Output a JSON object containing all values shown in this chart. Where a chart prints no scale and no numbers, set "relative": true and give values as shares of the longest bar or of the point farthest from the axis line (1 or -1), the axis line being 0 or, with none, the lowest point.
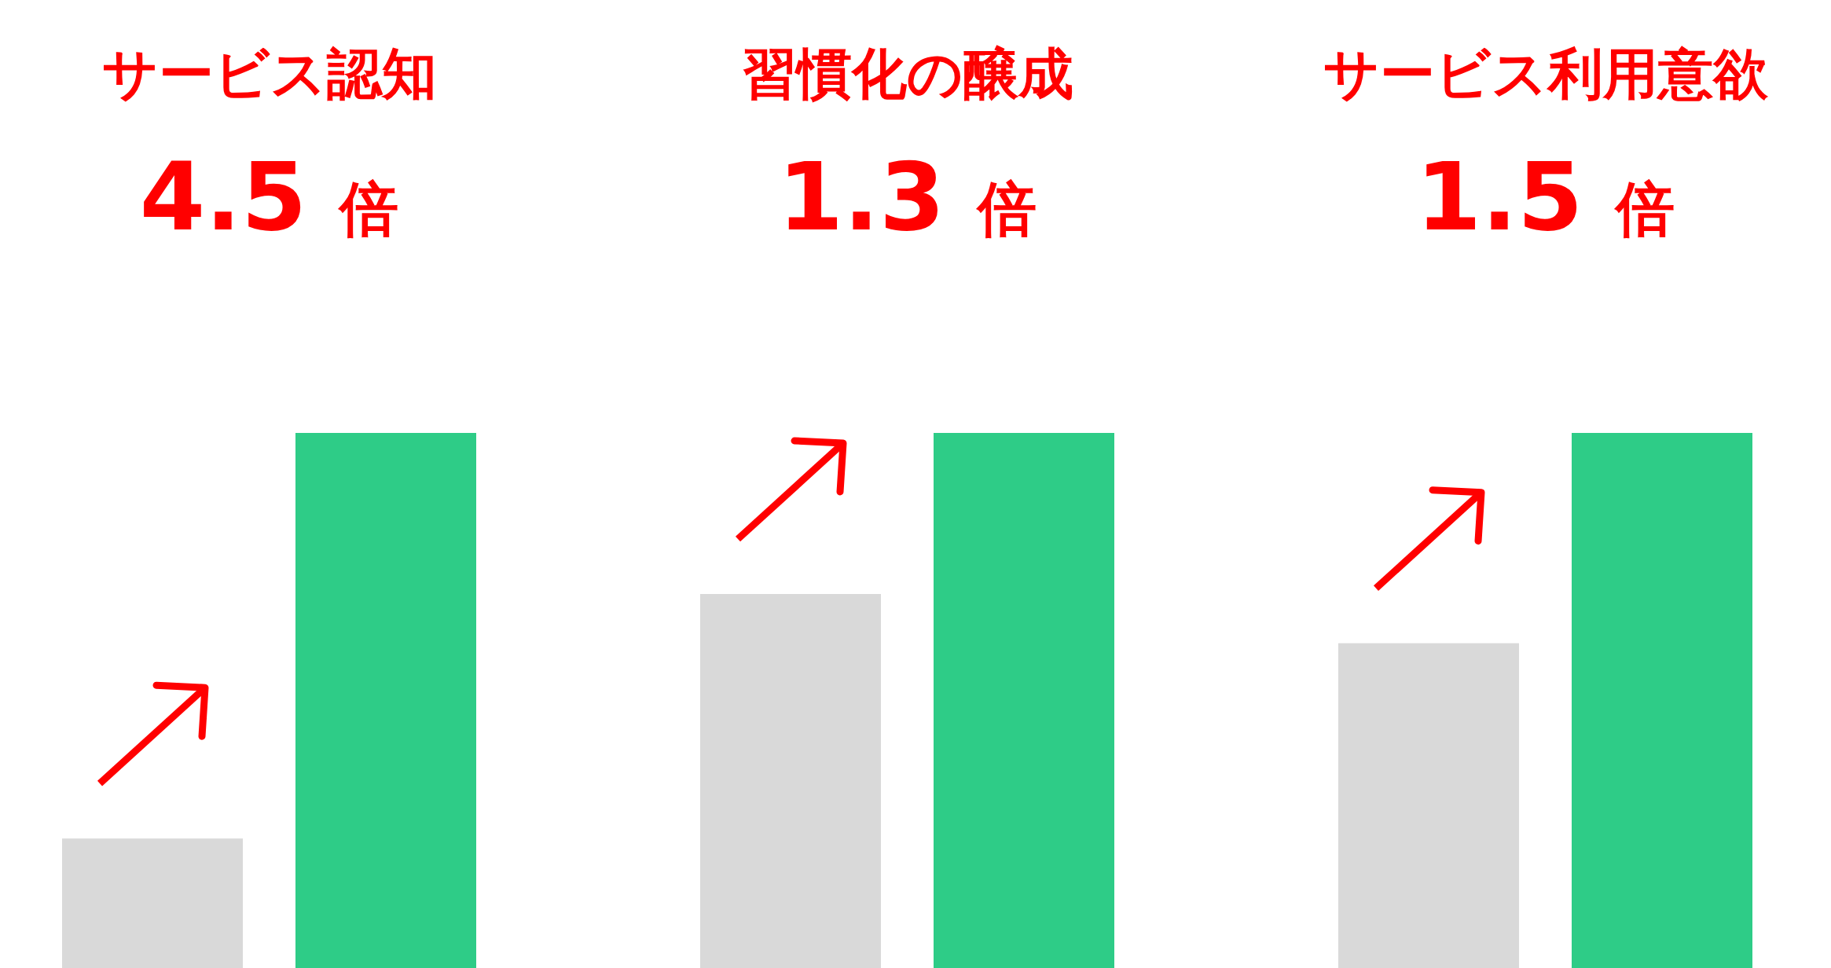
{
  "chart_data": [
    {
      "type": "bar",
      "title": "サービス認知",
      "subtitle": "4.5 倍",
      "relative": true,
      "categories": [
        null,
        null
      ],
      "values": [
        0.242,
        1
      ],
      "colors": [
        "#d9d9d9",
        "#2ecc87"
      ]
    },
    {
      "type": "bar",
      "title": "習慣化の醸成",
      "subtitle": "1.3 倍",
      "relative": true,
      "categories": [
        null,
        null
      ],
      "values": [
        0.699,
        1
      ],
      "colors": [
        "#d9d9d9",
        "#2ecc87"
      ]
    },
    {
      "type": "bar",
      "title": "サービス利用意欲",
      "subtitle": "1.5 倍",
      "relative": true,
      "categories": [
        null,
        null
      ],
      "values": [
        0.607,
        1
      ],
      "colors": [
        "#d9d9d9",
        "#2ecc87"
      ]
    }
  ]
}
